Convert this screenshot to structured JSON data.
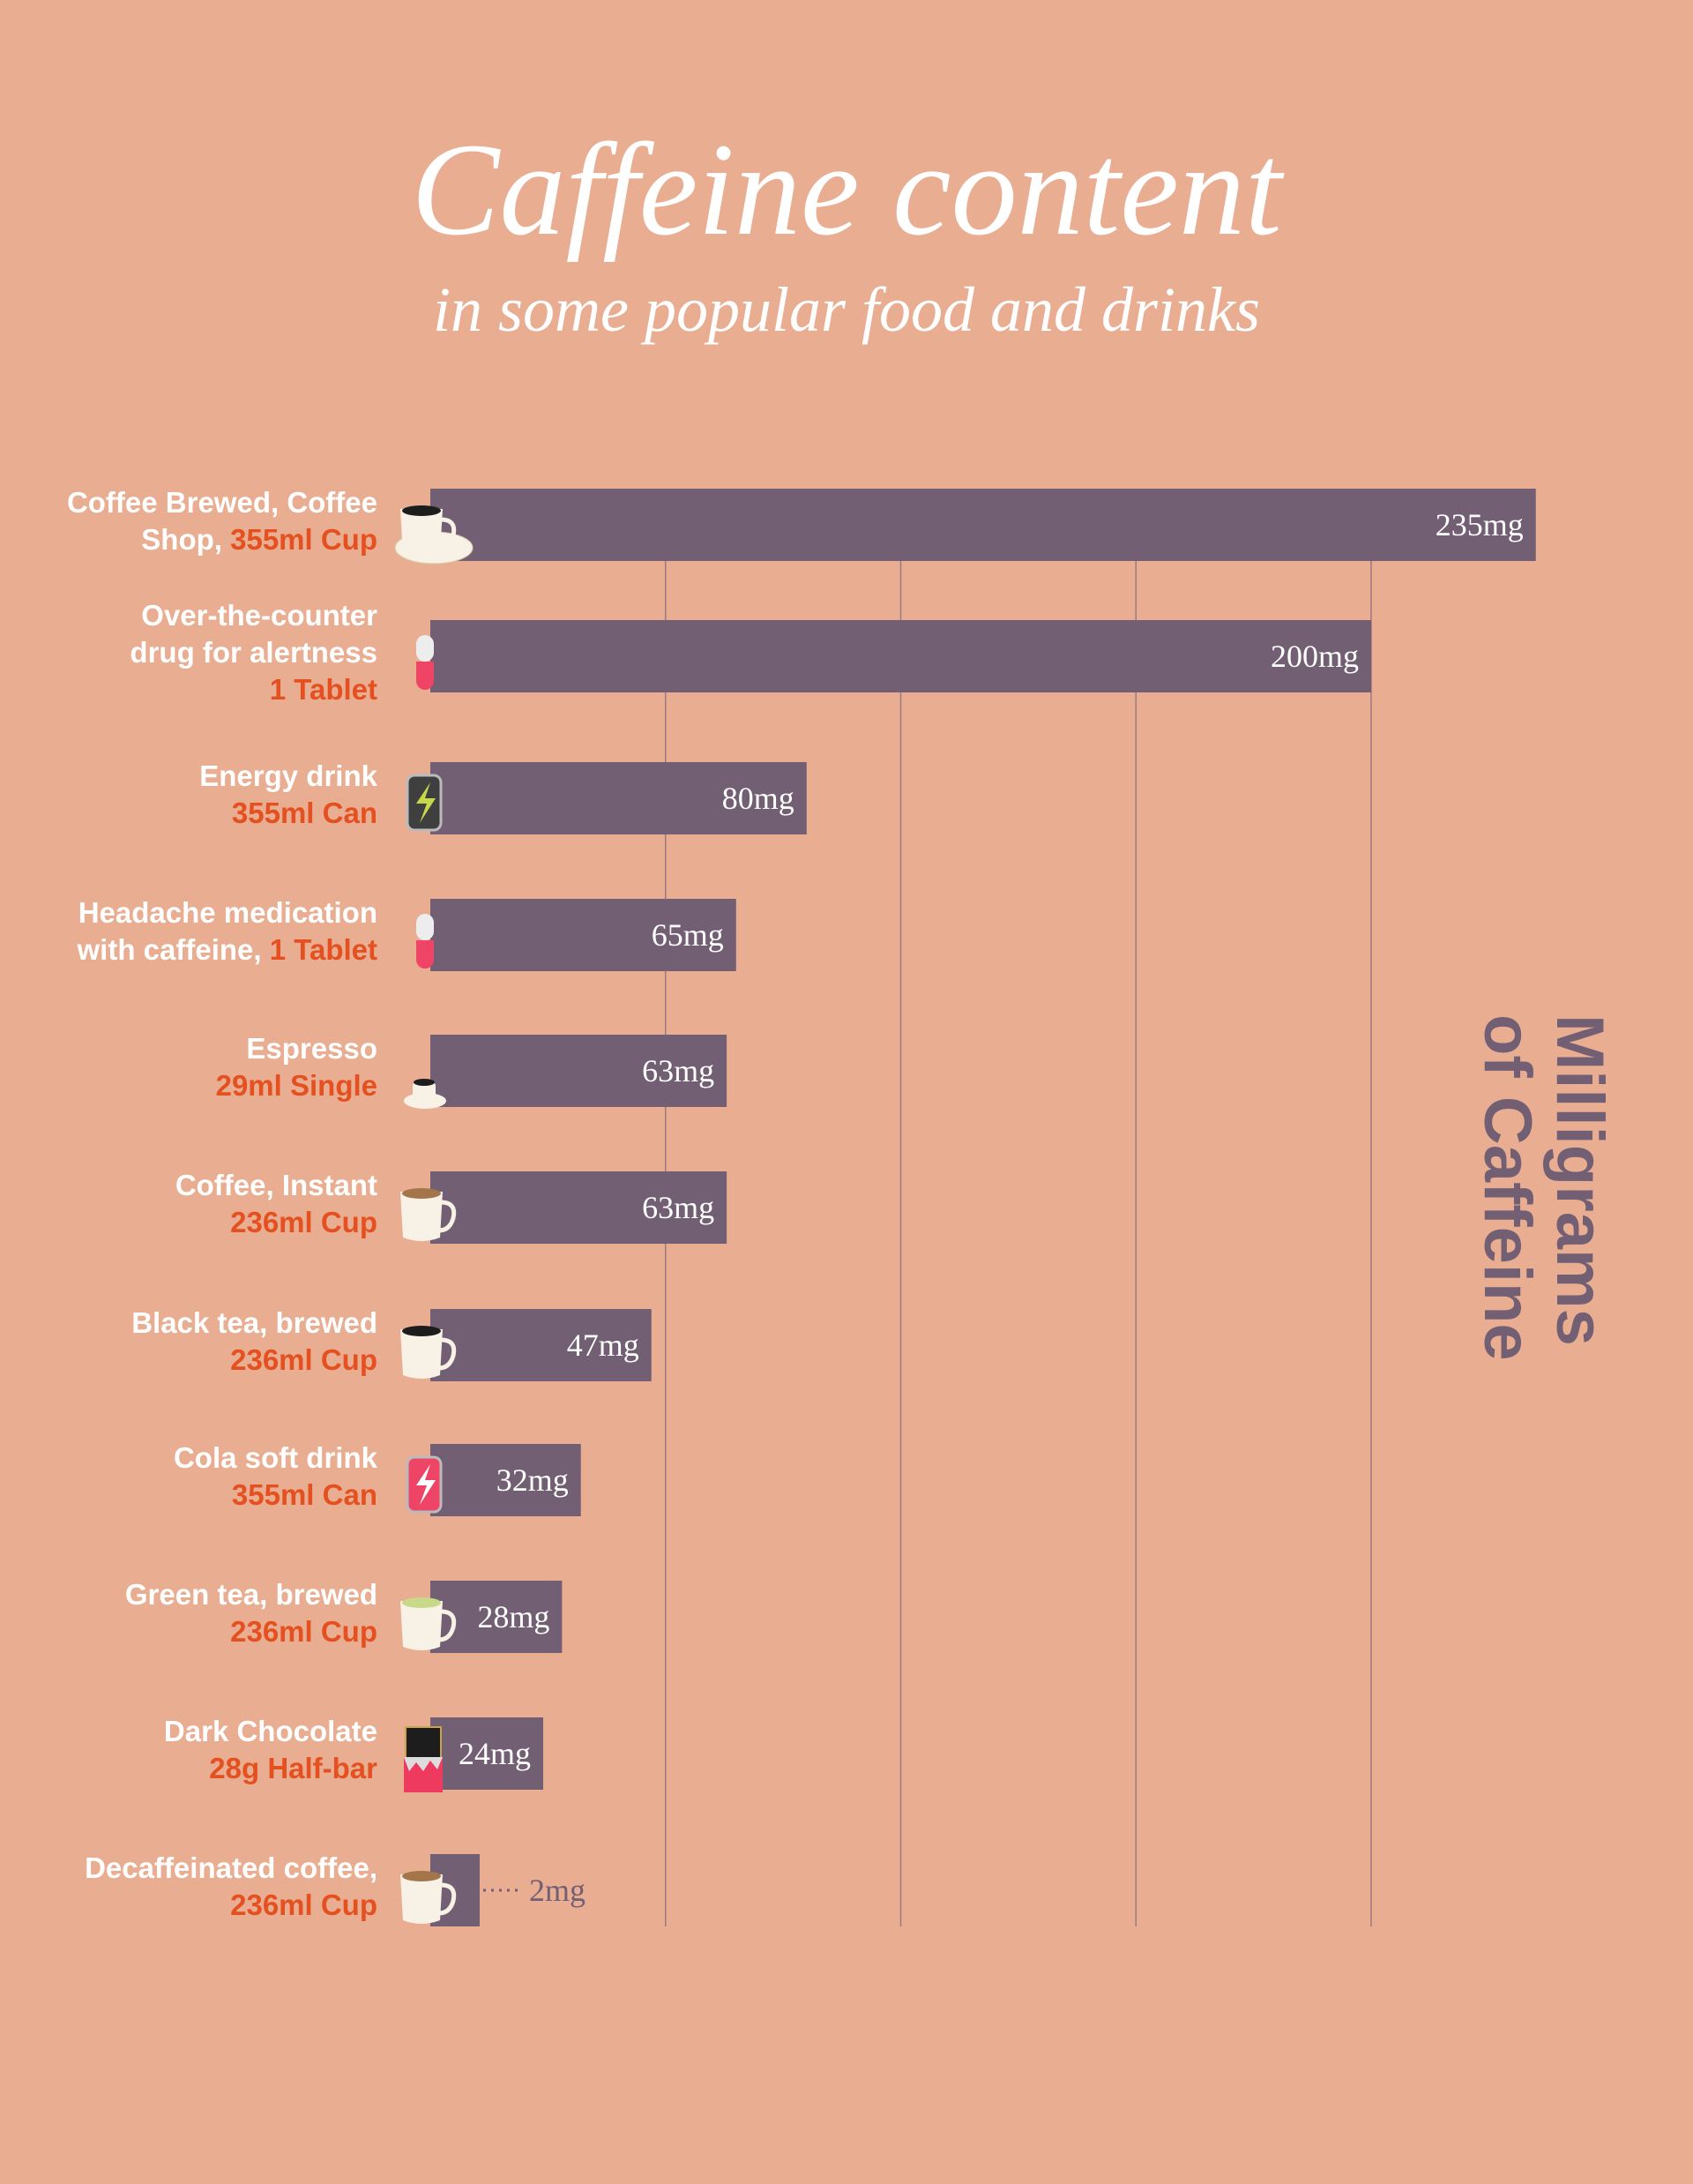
{
  "chart_data": {
    "type": "bar",
    "orientation": "horizontal",
    "title": "Caffeine content",
    "subtitle": "in some popular food and drinks",
    "xlabel": "Milligrams of Caffeine",
    "xlim": [
      0,
      200
    ],
    "grid": true,
    "gridlines": [
      50,
      100,
      150,
      200
    ],
    "unit": "mg",
    "colors": {
      "background": "#E9AD91",
      "bar": "#735F73",
      "accent": "#E4501F",
      "text": "#FFFFFF"
    },
    "items": [
      {
        "lines": [
          [
            {
              "t": "Coffee Brewed, Coffee"
            }
          ],
          [
            {
              "t": "Shop, "
            },
            {
              "t": "355ml Cup",
              "a": 1
            }
          ]
        ],
        "value": 235,
        "value_label": "235mg",
        "icon": "coffee-cup-saucer-icon"
      },
      {
        "lines": [
          [
            {
              "t": "Over-the-counter"
            }
          ],
          [
            {
              "t": "drug for alertness"
            }
          ],
          [
            {
              "t": "1 Tablet",
              "a": 1
            }
          ]
        ],
        "value": 200,
        "value_label": "200mg",
        "icon": "capsule-icon"
      },
      {
        "lines": [
          [
            {
              "t": "Energy drink"
            }
          ],
          [
            {
              "t": "355ml Can",
              "a": 1
            }
          ]
        ],
        "value": 80,
        "value_label": "80mg",
        "icon": "energy-can-icon"
      },
      {
        "lines": [
          [
            {
              "t": "Headache medication"
            }
          ],
          [
            {
              "t": "with caffeine, "
            },
            {
              "t": "1 Tablet",
              "a": 1
            }
          ]
        ],
        "value": 65,
        "value_label": "65mg",
        "icon": "capsule-icon"
      },
      {
        "lines": [
          [
            {
              "t": "Espresso"
            }
          ],
          [
            {
              "t": "29ml Single",
              "a": 1
            }
          ]
        ],
        "value": 63,
        "value_label": "63mg",
        "icon": "espresso-cup-icon"
      },
      {
        "lines": [
          [
            {
              "t": "Coffee, Instant"
            }
          ],
          [
            {
              "t": "236ml Cup",
              "a": 1
            }
          ]
        ],
        "value": 63,
        "value_label": "63mg",
        "icon": "mug-milk-coffee-icon"
      },
      {
        "lines": [
          [
            {
              "t": "Black tea, brewed"
            }
          ],
          [
            {
              "t": "236ml Cup",
              "a": 1
            }
          ]
        ],
        "value": 47,
        "value_label": "47mg",
        "icon": "mug-black-icon"
      },
      {
        "lines": [
          [
            {
              "t": "Cola soft drink"
            }
          ],
          [
            {
              "t": "355ml Can",
              "a": 1
            }
          ]
        ],
        "value": 32,
        "value_label": "32mg",
        "icon": "cola-can-icon"
      },
      {
        "lines": [
          [
            {
              "t": "Green tea, brewed"
            }
          ],
          [
            {
              "t": "236ml Cup",
              "a": 1
            }
          ]
        ],
        "value": 28,
        "value_label": "28mg",
        "icon": "mug-green-tea-icon"
      },
      {
        "lines": [
          [
            {
              "t": "Dark Chocolate"
            }
          ],
          [
            {
              "t": "28g Half-bar",
              "a": 1
            }
          ]
        ],
        "value": 24,
        "value_label": "24mg",
        "icon": "chocolate-bar-icon"
      },
      {
        "lines": [
          [
            {
              "t": "Decaffeinated coffee,"
            }
          ],
          [
            {
              "t": "236ml Cup",
              "a": 1
            }
          ]
        ],
        "value": 2,
        "value_label": "2mg",
        "icon": "mug-milk-coffee-icon"
      }
    ]
  }
}
